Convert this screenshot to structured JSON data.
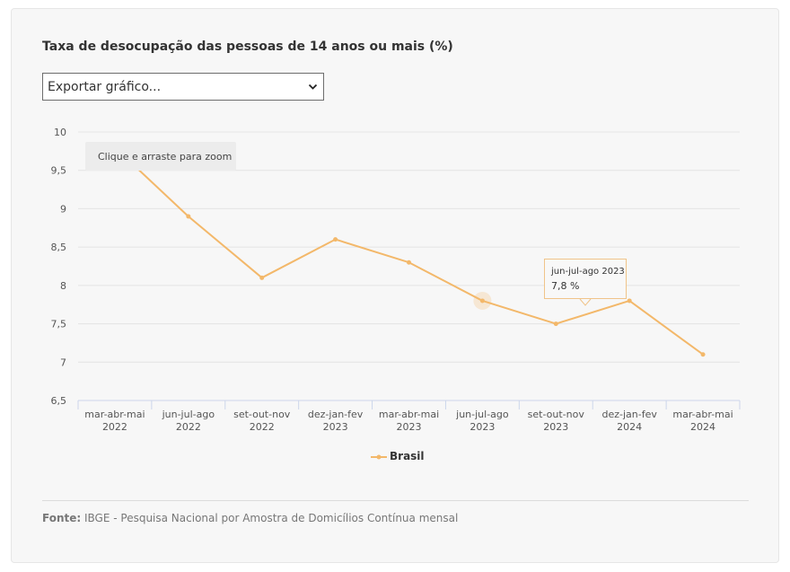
{
  "title": "Taxa de desocupação das pessoas de 14 anos ou mais (%)",
  "export_select": {
    "value": "Exportar gráfico...",
    "icon": "chevron-down-icon"
  },
  "zoom_hint": "Clique e arraste para zoom",
  "tooltip": {
    "period": "jun-jul-ago 2023",
    "value": "7,8 %"
  },
  "source": {
    "label": "Fonte:",
    "text": " IBGE - Pesquisa Nacional por Amostra de Domicílios Contínua mensal"
  },
  "colors": {
    "series": "#f3b86a",
    "grid": "#e4e4e4",
    "axis": "#ccd6eb"
  },
  "chart_data": {
    "type": "line",
    "title": "Taxa de desocupação das pessoas de 14 anos ou mais (%)",
    "categories": [
      [
        "mar-abr-mai",
        "2022"
      ],
      [
        "jun-jul-ago",
        "2022"
      ],
      [
        "set-out-nov",
        "2022"
      ],
      [
        "dez-jan-fev",
        "2023"
      ],
      [
        "mar-abr-mai",
        "2023"
      ],
      [
        "jun-jul-ago",
        "2023"
      ],
      [
        "set-out-nov",
        "2023"
      ],
      [
        "dez-jan-fev",
        "2024"
      ],
      [
        "mar-abr-mai",
        "2024"
      ]
    ],
    "series": [
      {
        "name": "Brasil",
        "values": [
          9.8,
          8.9,
          8.1,
          8.6,
          8.3,
          7.8,
          7.5,
          7.8,
          7.1
        ]
      }
    ],
    "yticks": [
      "10",
      "9,5",
      "9",
      "8,5",
      "8",
      "7,5",
      "7",
      "6,5"
    ],
    "ylim": [
      6.5,
      10
    ],
    "grid": true,
    "legend": "bottom-center",
    "highlighted_category_index": 5
  }
}
